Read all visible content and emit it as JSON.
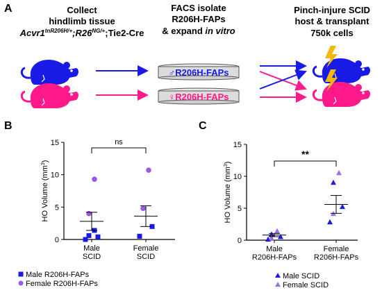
{
  "panel_labels": {
    "a": "A",
    "b": "B",
    "c": "C"
  },
  "schematic": {
    "step1": {
      "line1": "Collect",
      "line2": "hindlimb tissue",
      "genotype_a": "Acvr1",
      "genotype_a_sup": "tnR206H/+",
      "genotype_sep": ";",
      "genotype_b": "R26",
      "genotype_b_sup": "NG/+",
      "genotype_c": ";Tie2-Cre"
    },
    "step2": {
      "line1": "FACS isolate",
      "line2": "R206H-FAPs",
      "line3_a": "& expand ",
      "line3_b": "in vitro"
    },
    "step3": {
      "line1": "Pinch-injure SCID",
      "line2": "host & transplant",
      "line3": "750k cells"
    },
    "dish_male": "♂R206H-FAPs",
    "dish_female": "♀R206H-FAPs",
    "colors": {
      "male": "#1a1ae6",
      "female": "#ff1a8c"
    }
  },
  "chart_data": [
    {
      "type": "scatter",
      "panel": "B",
      "ylabel_main": "HO Volume (mm",
      "ylabel_sup": "3",
      "ylabel_end": ")",
      "ylim": [
        0,
        15
      ],
      "yticks": [
        "0",
        "5",
        "10",
        "15"
      ],
      "categories": [
        [
          "Male",
          "SCID"
        ],
        [
          "Female",
          "SCID"
        ]
      ],
      "series": [
        {
          "name": "Male R206H-FAPs",
          "marker": "square",
          "color": "#1a1ae6",
          "points": [
            [
              0,
              0.0
            ],
            [
              0,
              0.4
            ],
            [
              0,
              0.6
            ],
            [
              0,
              1.4
            ],
            [
              1,
              0.5
            ],
            [
              1,
              2.0
            ]
          ]
        },
        {
          "name": "Female R206H-FAPs",
          "marker": "circle",
          "color": "#9b59e6",
          "points": [
            [
              0,
              4.0
            ],
            [
              0,
              9.3
            ],
            [
              1,
              4.8
            ],
            [
              1,
              10.7
            ]
          ]
        }
      ],
      "mean": [
        2.8,
        3.6
      ],
      "sem": [
        1.4,
        1.6
      ],
      "significance": "ns"
    },
    {
      "type": "scatter",
      "panel": "C",
      "ylabel_main": "HO Volume (mm",
      "ylabel_sup": "3",
      "ylabel_end": ")",
      "ylim": [
        0,
        15
      ],
      "yticks": [
        "0",
        "5",
        "10",
        "15"
      ],
      "categories": [
        [
          "Male",
          "R206H-FAPs"
        ],
        [
          "Female",
          "R206H-FAPs"
        ]
      ],
      "series": [
        {
          "name": "Male SCID",
          "marker": "triangle",
          "color": "#1a1ae6",
          "points": [
            [
              0,
              0.1
            ],
            [
              0,
              0.5
            ],
            [
              0,
              0.9
            ],
            [
              1,
              2.8
            ],
            [
              1,
              5.2
            ],
            [
              1,
              9.0
            ]
          ]
        },
        {
          "name": "Female SCID",
          "marker": "triangle",
          "color": "#a070e0",
          "points": [
            [
              0,
              0.3
            ],
            [
              0,
              1.4
            ],
            [
              1,
              4.1
            ],
            [
              1,
              10.5
            ]
          ]
        }
      ],
      "mean": [
        0.8,
        5.6
      ],
      "sem": [
        0.25,
        1.4
      ],
      "significance": "**"
    }
  ]
}
